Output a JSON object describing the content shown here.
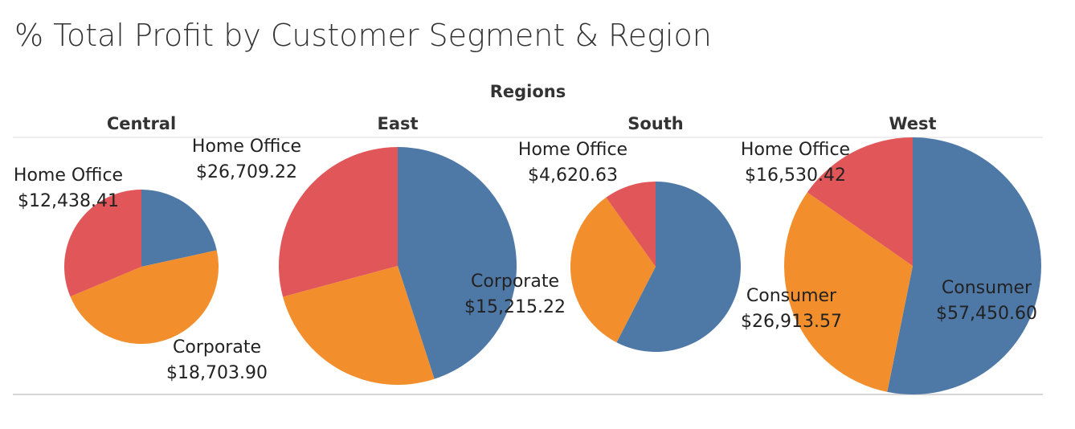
{
  "chart_data": {
    "type": "pie",
    "title": "% Total Profit by Customer Segment & Region",
    "column_header": "Regions",
    "colors": {
      "Consumer": "#4e79a7",
      "Corporate": "#f28e2b",
      "Home Office": "#e15759"
    },
    "panels": [
      {
        "region": "Central",
        "slices": [
          {
            "segment": "Consumer",
            "value": 8564.05,
            "label": false
          },
          {
            "segment": "Corporate",
            "value": 18703.9,
            "label": true,
            "label_value": "$18,703.90"
          },
          {
            "segment": "Home Office",
            "value": 12438.41,
            "label": true,
            "label_value": "$12,438.41"
          }
        ]
      },
      {
        "region": "East",
        "slices": [
          {
            "segment": "Consumer",
            "value": 41190.0,
            "label": false
          },
          {
            "segment": "Corporate",
            "value": 23622.0,
            "label": false
          },
          {
            "segment": "Home Office",
            "value": 26709.22,
            "label": true,
            "label_value": "$26,709.22"
          }
        ]
      },
      {
        "region": "South",
        "slices": [
          {
            "segment": "Consumer",
            "value": 26914.0,
            "label": false
          },
          {
            "segment": "Corporate",
            "value": 15215.22,
            "label": true,
            "label_value": "$15,215.22"
          },
          {
            "segment": "Home Office",
            "value": 4620.63,
            "label": true,
            "label_value": "$4,620.63"
          }
        ]
      },
      {
        "region": "West",
        "slices": [
          {
            "segment": "Consumer",
            "value": 57450.6,
            "label": true,
            "label_value": "$57,450.60"
          },
          {
            "segment": "Corporate",
            "value": 34060.0,
            "label": false
          },
          {
            "segment": "Home Office",
            "value": 16530.42,
            "label": true,
            "label_value": "$16,530.42"
          }
        ]
      }
    ],
    "annotations": [
      {
        "segment_text": "Home Office",
        "value_text": "$12,438.41"
      },
      {
        "segment_text": "Corporate",
        "value_text": "$18,703.90"
      },
      {
        "segment_text": "Home Office",
        "value_text": "$26,709.22"
      },
      {
        "segment_text": "Home Office",
        "value_text": "$4,620.63"
      },
      {
        "segment_text": "Corporate",
        "value_text": "$15,215.22"
      },
      {
        "segment_text": "Home Office",
        "value_text": "$16,530.42"
      },
      {
        "segment_text": "Consumer",
        "value_text": "$26,913.57"
      },
      {
        "segment_text": "Consumer",
        "value_text": "$57,450.60"
      }
    ]
  }
}
